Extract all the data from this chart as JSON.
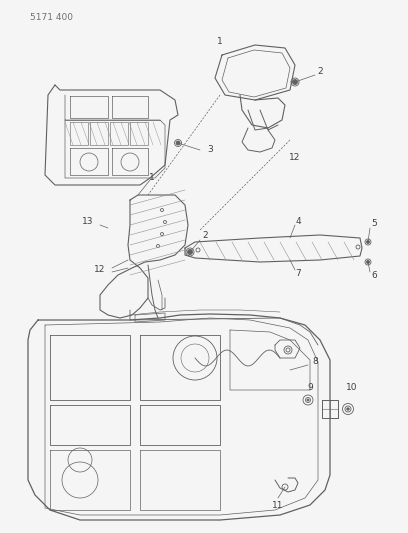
{
  "title": "5171 400",
  "bg": "#f5f5f5",
  "lc": "#606060",
  "tc": "#404040",
  "fw": 4.08,
  "fh": 5.33,
  "dpi": 100
}
